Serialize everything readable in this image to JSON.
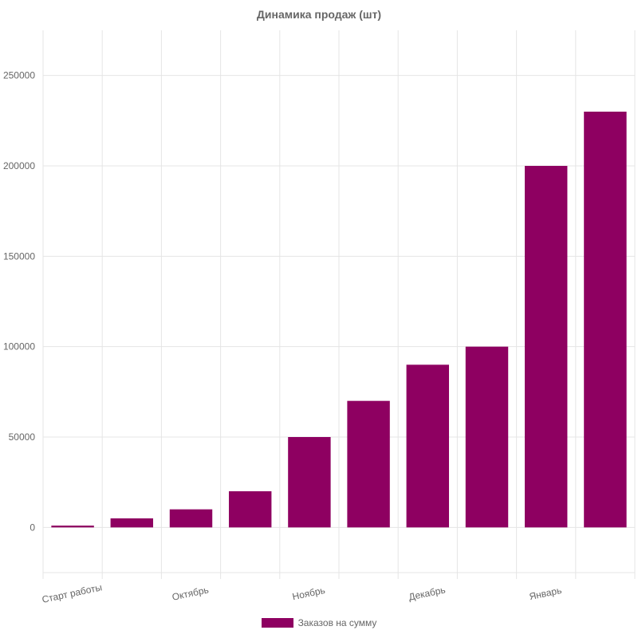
{
  "chart_data": {
    "type": "bar",
    "title": "Динамика продаж (шт)",
    "categories": [
      "Старт работы",
      "",
      "Октябрь",
      "",
      "Ноябрь",
      "",
      "Декабрь",
      "",
      "Январь",
      ""
    ],
    "series": [
      {
        "name": "Заказов на сумму",
        "values": [
          1000,
          5000,
          10000,
          20000,
          50000,
          70000,
          90000,
          100000,
          200000,
          230000
        ]
      }
    ],
    "ylim": [
      -25000,
      275000
    ],
    "yticks": [
      0,
      50000,
      100000,
      150000,
      200000,
      250000
    ],
    "ytick_labels": [
      "0",
      "50000",
      "100000",
      "150000",
      "200000",
      "250000"
    ],
    "x_tick_labels": [
      {
        "index": 0,
        "label": "Старт работы"
      },
      {
        "index": 2,
        "label": "Октябрь"
      },
      {
        "index": 4,
        "label": "Ноябрь"
      },
      {
        "index": 6,
        "label": "Декабрь"
      },
      {
        "index": 8,
        "label": "Январь"
      }
    ],
    "grid": true,
    "legend_position": "bottom",
    "colors": {
      "bar": "#8e0061",
      "grid": "#e5e5e5",
      "text": "#666666"
    }
  }
}
